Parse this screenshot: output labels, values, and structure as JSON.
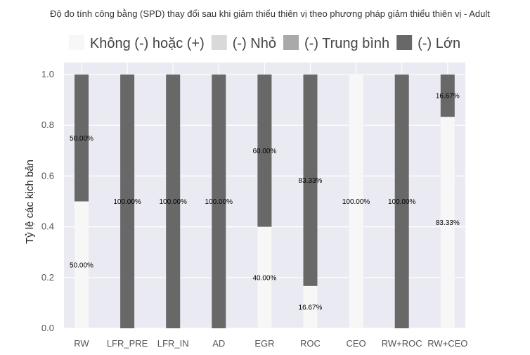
{
  "chart_data": {
    "type": "bar",
    "stacked": true,
    "title": "Độ đo tính công bằng (SPD) thay đổi sau khi giảm thiểu thiên vị theo phương pháp giảm thiểu thiên vị - Adult",
    "xlabel": "",
    "ylabel": "Tỷ lệ các kịch bản",
    "ylim": [
      0,
      1.0
    ],
    "yticks": [
      "0.0",
      "0.2",
      "0.4",
      "0.6",
      "0.8",
      "1.0"
    ],
    "grid": true,
    "legend_position": "top",
    "categories": [
      "RW",
      "LFR_PRE",
      "LFR_IN",
      "AD",
      "EGR",
      "ROC",
      "CEO",
      "RW+ROC",
      "RW+CEO"
    ],
    "series": [
      {
        "name": "Không (-) hoặc (+)",
        "color": "#f7f7f7",
        "values": [
          0.5,
          0,
          0,
          0,
          0.4,
          0.1667,
          1.0,
          0,
          0.8333
        ],
        "labels": [
          "50.00%",
          "",
          "",
          "",
          "40.00%",
          "16.67%",
          "100.00%",
          "",
          "83.33%"
        ]
      },
      {
        "name": "(-) Nhỏ",
        "color": "#d9d9d9",
        "values": [
          0,
          0,
          0,
          0,
          0,
          0,
          0,
          0,
          0
        ],
        "labels": [
          "",
          "",
          "",
          "",
          "",
          "",
          "",
          "",
          ""
        ]
      },
      {
        "name": "(-) Trung bình",
        "color": "#a9a9a9",
        "values": [
          0,
          0,
          0,
          0,
          0,
          0,
          0,
          0,
          0
        ],
        "labels": [
          "",
          "",
          "",
          "",
          "",
          "",
          "",
          "",
          ""
        ]
      },
      {
        "name": "(-) Lớn",
        "color": "#686868",
        "values": [
          0.5,
          1.0,
          1.0,
          1.0,
          0.6,
          0.8333,
          0,
          1.0,
          0.1667
        ],
        "labels": [
          "50.00%",
          "100.00%",
          "100.00%",
          "100.00%",
          "60.00%",
          "83.33%",
          "",
          "100.00%",
          "16.67%"
        ]
      }
    ]
  }
}
